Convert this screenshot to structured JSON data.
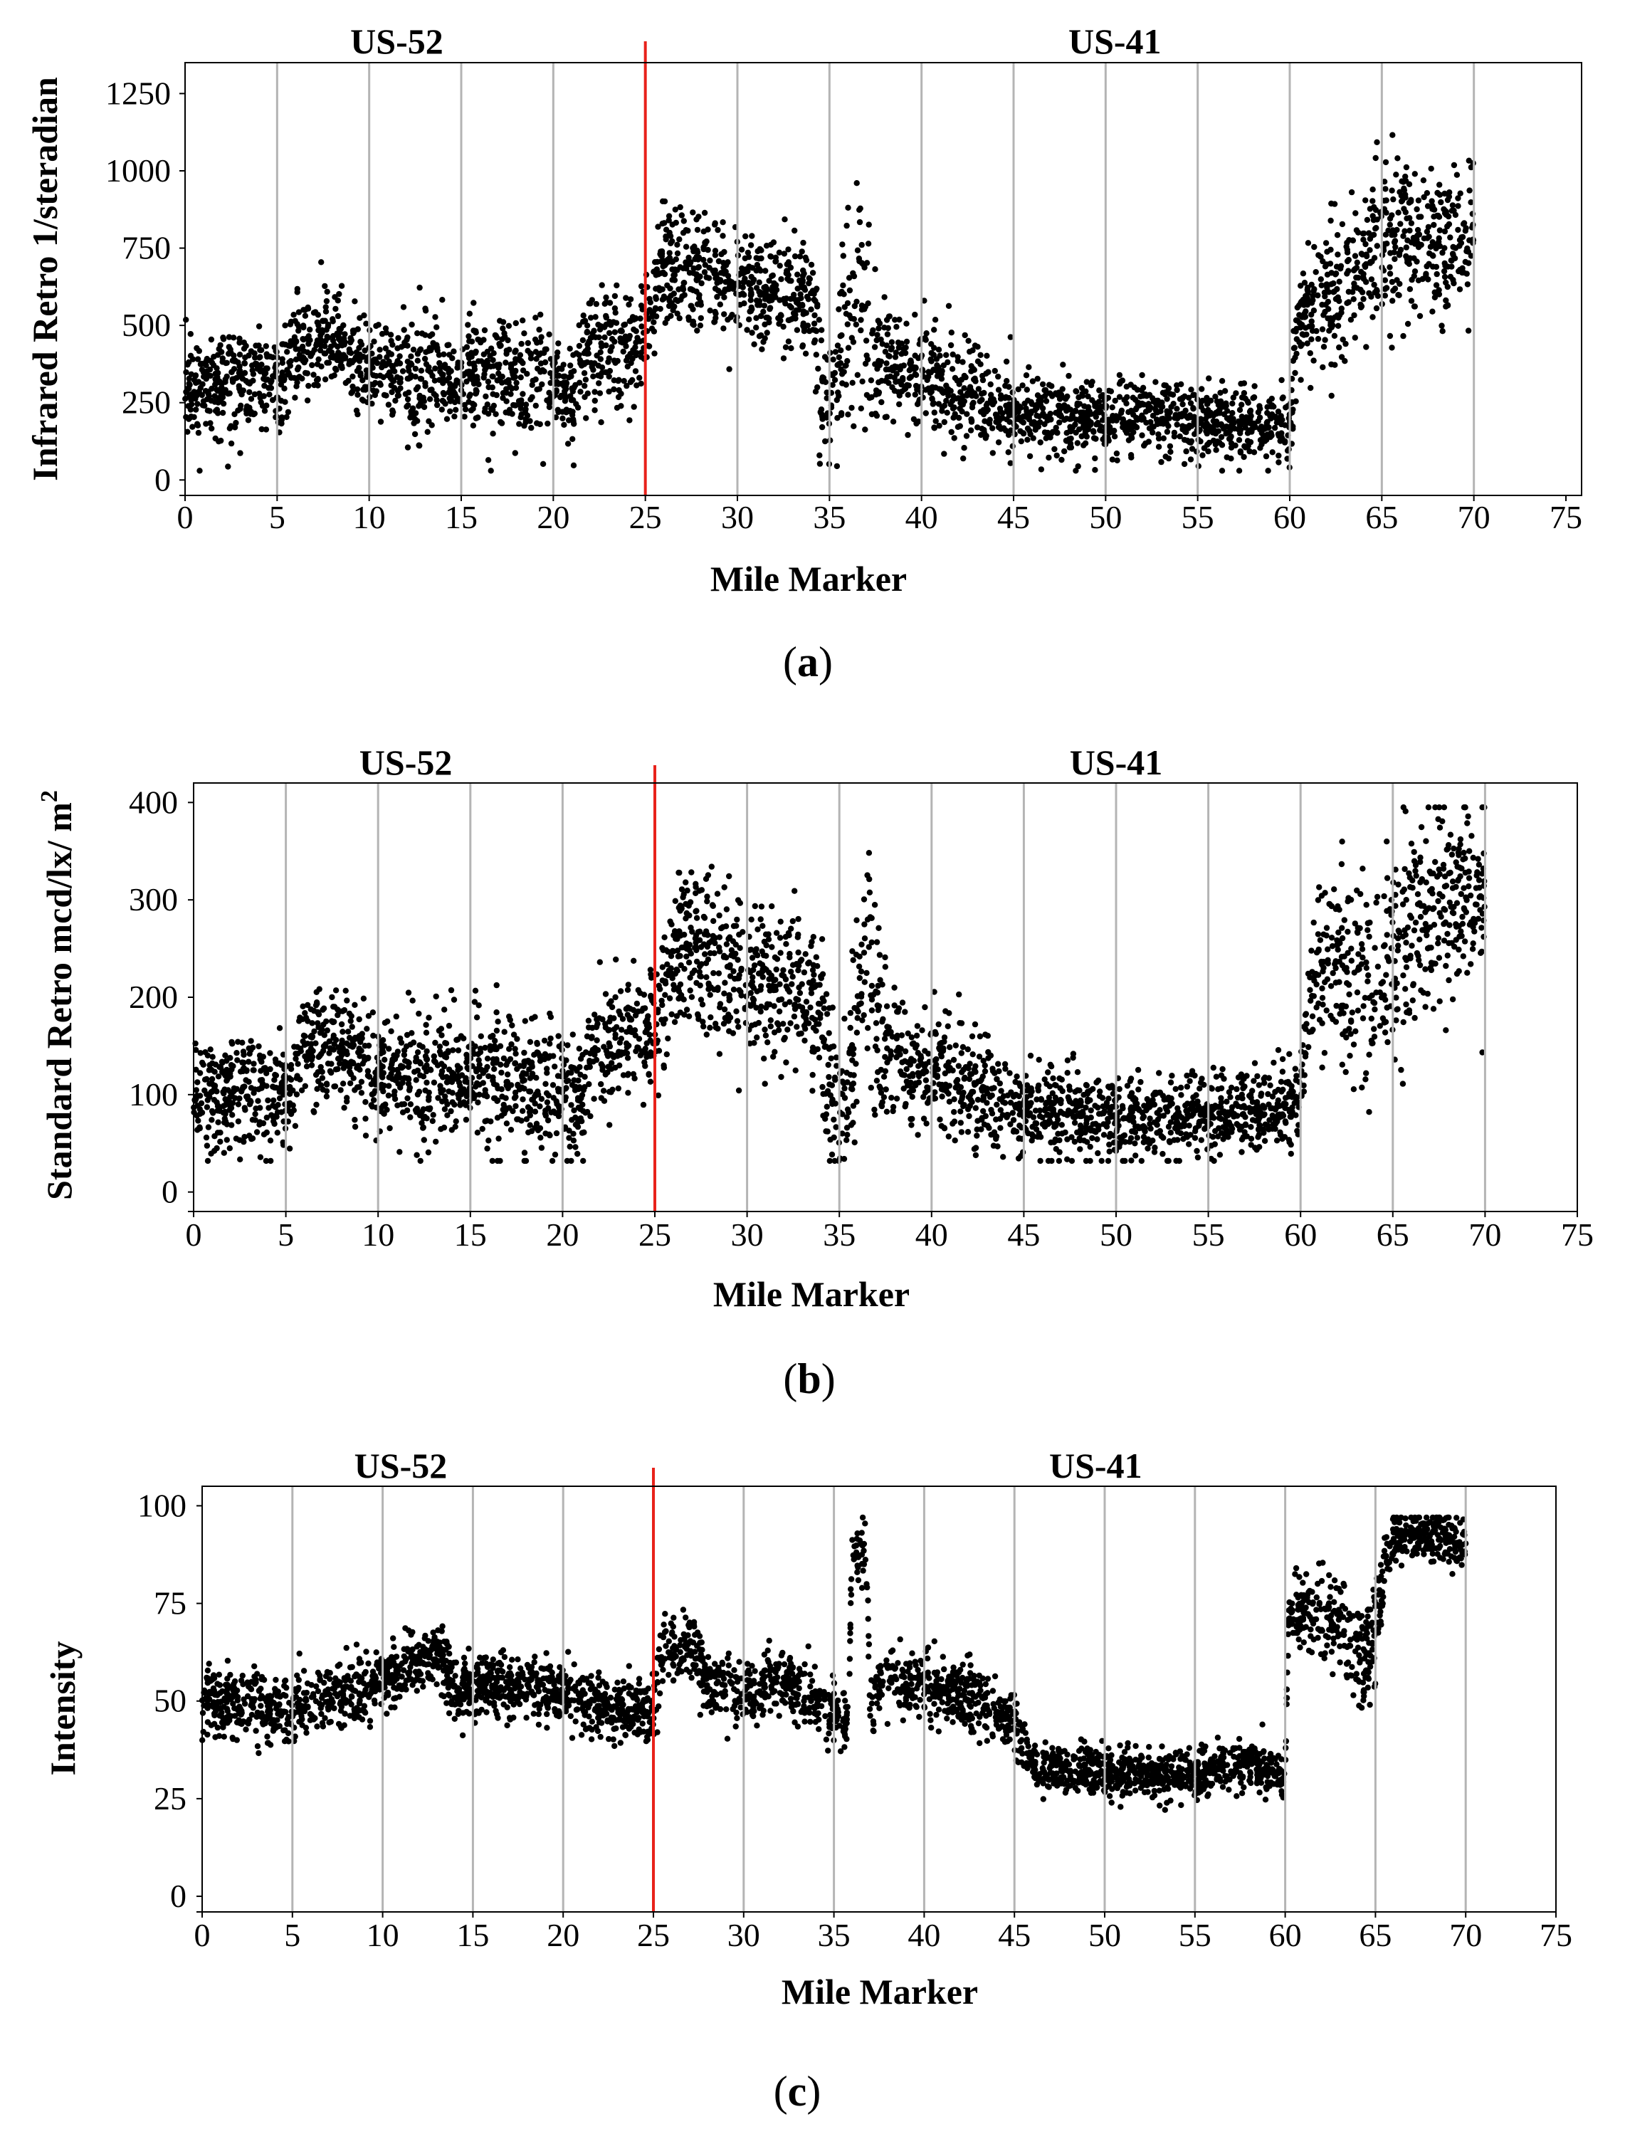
{
  "chart_data": [
    {
      "type": "scatter",
      "panel": "a",
      "caption": {
        "open": "(",
        "letter": "a",
        "close": ")"
      },
      "xlabel": "Mile Marker",
      "ylabel": "Infrared Retro 1/steradian",
      "xlim": [
        0,
        75
      ],
      "ylim": [
        -50,
        1350
      ],
      "xticks": [
        0,
        5,
        10,
        15,
        20,
        25,
        30,
        35,
        40,
        45,
        50,
        55,
        60,
        65,
        70,
        75
      ],
      "yticks": [
        0,
        250,
        500,
        750,
        1000,
        1250
      ],
      "gridlines_x": [
        5,
        10,
        15,
        20,
        30,
        35,
        40,
        45,
        50,
        55,
        60,
        65,
        70
      ],
      "separator_x": 25,
      "separator_color": "#e8221b",
      "point_color": "#000000",
      "grid_color": "#b4b4b4",
      "annotations": [
        {
          "text": "US-52",
          "x": 11.5
        },
        {
          "text": "US-41",
          "x": 50.5
        }
      ],
      "trend": [
        [
          0,
          300
        ],
        [
          3,
          320
        ],
        [
          5,
          300
        ],
        [
          6,
          420
        ],
        [
          8,
          450
        ],
        [
          10,
          360
        ],
        [
          12,
          340
        ],
        [
          15,
          330
        ],
        [
          18,
          320
        ],
        [
          20,
          300
        ],
        [
          21,
          260
        ],
        [
          22,
          420
        ],
        [
          24,
          430
        ],
        [
          25,
          450
        ],
        [
          26,
          700
        ],
        [
          28,
          660
        ],
        [
          30,
          620
        ],
        [
          32,
          610
        ],
        [
          34,
          600
        ],
        [
          34.5,
          320
        ],
        [
          35.5,
          330
        ],
        [
          36.5,
          650
        ],
        [
          37.5,
          380
        ],
        [
          40,
          330
        ],
        [
          43,
          260
        ],
        [
          45,
          230
        ],
        [
          48,
          200
        ],
        [
          52,
          210
        ],
        [
          55,
          190
        ],
        [
          58,
          180
        ],
        [
          60,
          150
        ],
        [
          60.5,
          540
        ],
        [
          62,
          600
        ],
        [
          64,
          680
        ],
        [
          66,
          800
        ],
        [
          68,
          780
        ],
        [
          70,
          750
        ]
      ],
      "spread": [
        [
          0,
          80
        ],
        [
          25,
          100
        ],
        [
          26,
          90
        ],
        [
          34,
          90
        ],
        [
          35,
          130
        ],
        [
          37,
          180
        ],
        [
          38,
          90
        ],
        [
          45,
          60
        ],
        [
          60,
          60
        ],
        [
          61,
          100
        ],
        [
          65,
          130
        ],
        [
          70,
          130
        ]
      ],
      "clip": [
        30,
        1120
      ],
      "n_points": 3500
    },
    {
      "type": "scatter",
      "panel": "b",
      "caption": {
        "open": "(",
        "letter": "b",
        "close": ")"
      },
      "xlabel": "Mile Marker",
      "ylabel": "Standard Retro mcd/lx/ m",
      "ylabel_superscript": "2",
      "xlim": [
        0,
        75
      ],
      "ylim": [
        -20,
        420
      ],
      "xticks": [
        0,
        5,
        10,
        15,
        20,
        25,
        30,
        35,
        40,
        45,
        50,
        55,
        60,
        65,
        70,
        75
      ],
      "yticks": [
        0,
        100,
        200,
        300,
        400
      ],
      "gridlines_x": [
        5,
        10,
        15,
        20,
        30,
        35,
        40,
        45,
        50,
        55,
        60,
        65,
        70
      ],
      "separator_x": 25,
      "separator_color": "#e8221b",
      "point_color": "#000000",
      "grid_color": "#b4b4b4",
      "annotations": [
        {
          "text": "US-52",
          "x": 11.5
        },
        {
          "text": "US-41",
          "x": 50
        }
      ],
      "trend": [
        [
          0,
          100
        ],
        [
          4,
          105
        ],
        [
          5,
          95
        ],
        [
          6,
          150
        ],
        [
          8,
          150
        ],
        [
          10,
          125
        ],
        [
          12,
          120
        ],
        [
          15,
          120
        ],
        [
          18,
          110
        ],
        [
          20,
          100
        ],
        [
          21,
          90
        ],
        [
          22,
          150
        ],
        [
          24,
          160
        ],
        [
          25,
          160
        ],
        [
          26,
          260
        ],
        [
          28,
          240
        ],
        [
          30,
          220
        ],
        [
          32,
          210
        ],
        [
          34,
          190
        ],
        [
          34.5,
          90
        ],
        [
          35.5,
          100
        ],
        [
          36.5,
          250
        ],
        [
          37.5,
          140
        ],
        [
          40,
          120
        ],
        [
          43,
          100
        ],
        [
          45,
          85
        ],
        [
          50,
          75
        ],
        [
          55,
          80
        ],
        [
          58,
          85
        ],
        [
          60,
          90
        ],
        [
          60.5,
          210
        ],
        [
          62,
          240
        ],
        [
          64,
          200
        ],
        [
          66,
          270
        ],
        [
          68,
          300
        ],
        [
          70,
          310
        ]
      ],
      "spread": [
        [
          0,
          28
        ],
        [
          25,
          35
        ],
        [
          26,
          40
        ],
        [
          34,
          40
        ],
        [
          35,
          40
        ],
        [
          37,
          60
        ],
        [
          38,
          30
        ],
        [
          45,
          22
        ],
        [
          60,
          22
        ],
        [
          61,
          45
        ],
        [
          65,
          55
        ],
        [
          70,
          45
        ]
      ],
      "clip": [
        32,
        395
      ],
      "n_points": 3500
    },
    {
      "type": "scatter",
      "panel": "c",
      "caption": {
        "open": "(",
        "letter": "c",
        "close": ")"
      },
      "xlabel": "Mile Marker",
      "ylabel": "Intensity",
      "xlim": [
        0,
        75
      ],
      "ylim": [
        -4,
        105
      ],
      "xticks": [
        0,
        5,
        10,
        15,
        20,
        25,
        30,
        35,
        40,
        45,
        50,
        55,
        60,
        65,
        70,
        75
      ],
      "yticks": [
        0,
        25,
        50,
        75,
        100
      ],
      "gridlines_x": [
        5,
        10,
        15,
        20,
        30,
        35,
        40,
        45,
        50,
        55,
        60,
        65,
        70
      ],
      "separator_x": 25,
      "separator_color": "#e8221b",
      "point_color": "#000000",
      "grid_color": "#b4b4b4",
      "annotations": [
        {
          "text": "US-52",
          "x": 11
        },
        {
          "text": "US-41",
          "x": 49.5
        }
      ],
      "trend": [
        [
          0,
          50
        ],
        [
          5,
          48
        ],
        [
          8,
          52
        ],
        [
          10,
          55
        ],
        [
          13,
          63
        ],
        [
          14,
          52
        ],
        [
          16,
          55
        ],
        [
          20,
          52
        ],
        [
          22,
          50
        ],
        [
          24,
          47
        ],
        [
          25,
          48
        ],
        [
          25.5,
          62
        ],
        [
          27,
          65
        ],
        [
          28,
          55
        ],
        [
          30,
          52
        ],
        [
          32,
          56
        ],
        [
          34,
          50
        ],
        [
          35,
          48
        ],
        [
          35.8,
          45
        ],
        [
          36,
          88
        ],
        [
          36.8,
          88
        ],
        [
          37,
          50
        ],
        [
          38,
          55
        ],
        [
          40,
          54
        ],
        [
          43,
          50
        ],
        [
          45,
          45
        ],
        [
          46,
          33
        ],
        [
          50,
          32
        ],
        [
          55,
          31
        ],
        [
          58,
          34
        ],
        [
          60,
          30
        ],
        [
          60.2,
          72
        ],
        [
          63,
          72
        ],
        [
          64.5,
          60
        ],
        [
          65,
          70
        ],
        [
          66,
          92
        ],
        [
          70,
          92
        ]
      ],
      "spread": [
        [
          0,
          4
        ],
        [
          45,
          4
        ],
        [
          46,
          3
        ],
        [
          60,
          3
        ],
        [
          61,
          5
        ],
        [
          64,
          8
        ],
        [
          65,
          6
        ],
        [
          66,
          3
        ],
        [
          70,
          4
        ]
      ],
      "clip": [
        22,
        97
      ],
      "n_points": 3500
    }
  ]
}
